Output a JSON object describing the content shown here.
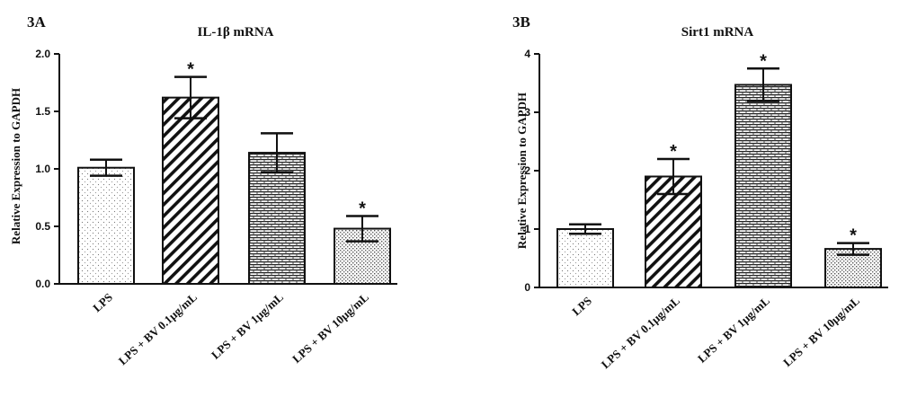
{
  "chart_data": [
    {
      "type": "bar",
      "panel_label": "3A",
      "title": "IL-1β mRNA",
      "xlabel": "",
      "ylabel": "Relative Expression to GAPDH",
      "ylim": [
        0,
        2.0
      ],
      "yticks": [
        "0.0",
        "0.5",
        "1.0",
        "1.5",
        "2.0"
      ],
      "categories": [
        "LPS",
        "LPS + BV 0.1μg/mL",
        "LPS + BV 1μg/mL",
        "LPS + BV 10μg/mL"
      ],
      "values": [
        1.01,
        1.62,
        1.14,
        0.48
      ],
      "errors": [
        0.07,
        0.18,
        0.17,
        0.11
      ],
      "significance": [
        "",
        "*",
        "",
        "*"
      ],
      "patterns": [
        "dots",
        "diagonal",
        "brick",
        "finedots"
      ]
    },
    {
      "type": "bar",
      "panel_label": "3B",
      "title": "Sirt1 mRNA",
      "xlabel": "",
      "ylabel": "Relative Expression to GAPDH",
      "ylim": [
        0,
        4
      ],
      "yticks": [
        "0",
        "1",
        "2",
        "3",
        "4"
      ],
      "categories": [
        "LPS",
        "LPS + BV 0.1μg/mL",
        "LPS + BV 1μg/mL",
        "LPS + BV 10μg/mL"
      ],
      "values": [
        1.0,
        1.9,
        3.47,
        0.66
      ],
      "errors": [
        0.08,
        0.3,
        0.28,
        0.1
      ],
      "significance": [
        "",
        "*",
        "*",
        "*"
      ],
      "patterns": [
        "dots",
        "diagonal",
        "brick",
        "finedots"
      ]
    }
  ]
}
